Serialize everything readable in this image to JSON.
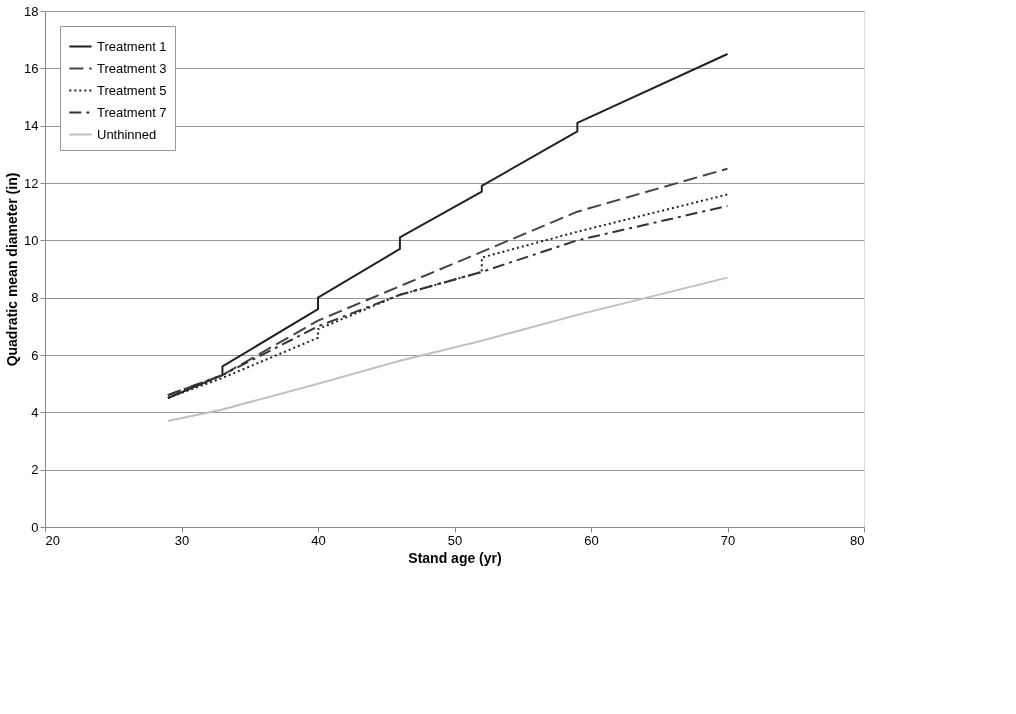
{
  "chart_data": {
    "type": "line",
    "xlabel": "Stand age (yr)",
    "ylabel": "Quadratic mean diameter (in)",
    "xlim": [
      20,
      80
    ],
    "xticks": [
      20,
      30,
      40,
      50,
      60,
      70,
      80
    ],
    "ylim": [
      0,
      18
    ],
    "yticks": [
      0,
      2,
      4,
      6,
      8,
      10,
      12,
      14,
      16,
      18
    ],
    "grid": "y",
    "legend": "top left",
    "series": [
      {
        "name": "Treatment 1",
        "color": "#222222",
        "line_style": "solid",
        "x": [
          29,
          33,
          33,
          40,
          40,
          46,
          46,
          52,
          52,
          59,
          59,
          70
        ],
        "values": [
          4.5,
          5.3,
          5.6,
          7.6,
          8.0,
          9.7,
          10.1,
          11.7,
          11.9,
          13.8,
          14.1,
          16.5
        ]
      },
      {
        "name": "Treatment 3",
        "color": "#444444",
        "line_style": "dashed",
        "x": [
          29,
          33,
          40,
          46,
          52,
          59,
          70
        ],
        "values": [
          4.6,
          5.3,
          7.2,
          8.4,
          9.6,
          11.0,
          12.5
        ]
      },
      {
        "name": "Treatment 5",
        "color": "#222222",
        "line_style": "dotted",
        "x": [
          29,
          33,
          40,
          40,
          46,
          52,
          52,
          59,
          70
        ],
        "values": [
          4.5,
          5.2,
          6.6,
          6.9,
          8.1,
          8.9,
          9.4,
          10.3,
          11.6
        ]
      },
      {
        "name": "Treatment 7",
        "color": "#333333",
        "line_style": "dashdot",
        "x": [
          29,
          33,
          40,
          46,
          52,
          59,
          70
        ],
        "values": [
          4.6,
          5.3,
          7.0,
          8.1,
          8.9,
          10.0,
          11.2
        ]
      },
      {
        "name": "Unthinned",
        "color": "#c0c0c0",
        "line_style": "solid",
        "x": [
          29,
          33,
          40,
          46,
          52,
          59,
          70
        ],
        "values": [
          3.7,
          4.1,
          5.0,
          5.8,
          6.5,
          7.4,
          8.7
        ]
      }
    ]
  }
}
